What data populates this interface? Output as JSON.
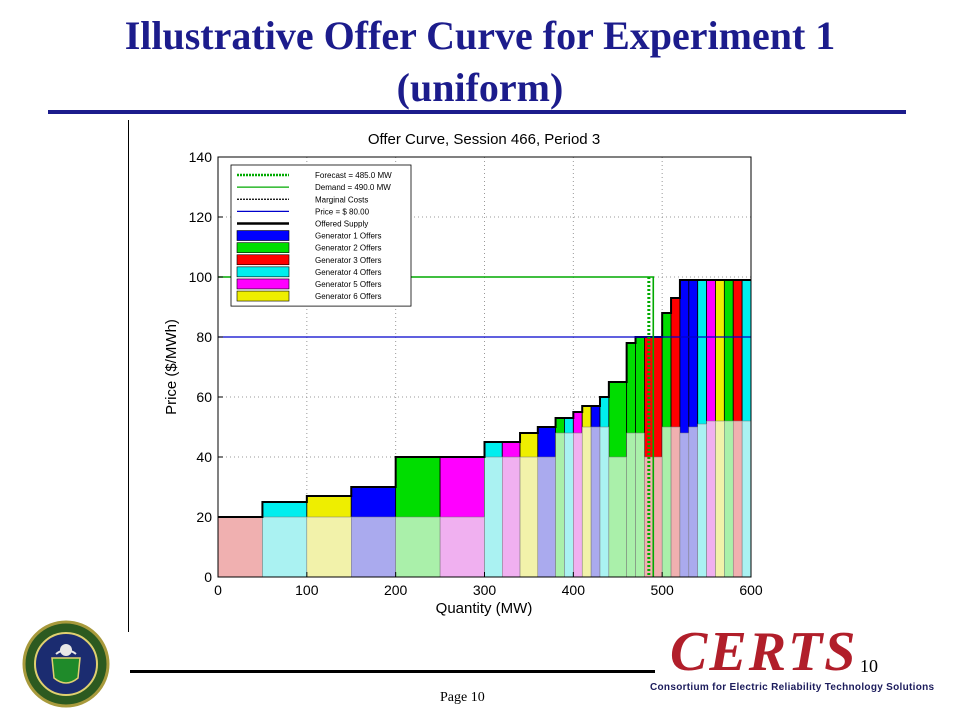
{
  "slide": {
    "title_line1": "Illustrative Offer Curve for Experiment 1",
    "title_line2": "(uniform)",
    "page_label": "Page 10",
    "slide_number": "10",
    "certs_word": "CERTS",
    "certs_tagline": "Consortium for Electric Reliability Technology Solutions",
    "title_color": "#1c1c8c"
  },
  "chart_data": {
    "type": "bar",
    "title": "Offer Curve, Session 466, Period 3",
    "xlabel": "Quantity (MW)",
    "ylabel": "Price ($/MWh)",
    "xlim": [
      0,
      600
    ],
    "ylim": [
      0,
      140
    ],
    "xticks": [
      0,
      100,
      200,
      300,
      400,
      500,
      600
    ],
    "yticks": [
      0,
      20,
      40,
      60,
      80,
      100,
      120,
      140
    ],
    "grid": true,
    "legend_position": "top-left",
    "legend": [
      {
        "label": "Forecast = 485.0 MW",
        "style": "dotted",
        "color": "#00aa00"
      },
      {
        "label": "Demand = 490.0 MW",
        "style": "solid",
        "color": "#00aa00"
      },
      {
        "label": "Marginal Costs",
        "style": "dotted",
        "color": "#000000"
      },
      {
        "label": "Price = $ 80.00",
        "style": "solid",
        "color": "#0000cc"
      },
      {
        "label": "Offered Supply",
        "style": "thick",
        "color": "#000000"
      },
      {
        "label": "Generator 1 Offers",
        "style": "patch",
        "color": "#0000ff"
      },
      {
        "label": "Generator 2 Offers",
        "style": "patch",
        "color": "#00dd00"
      },
      {
        "label": "Generator 3 Offers",
        "style": "patch",
        "color": "#ff0000"
      },
      {
        "label": "Generator 4 Offers",
        "style": "patch",
        "color": "#00eeee"
      },
      {
        "label": "Generator 5 Offers",
        "style": "patch",
        "color": "#ff00ff"
      },
      {
        "label": "Generator 6 Offers",
        "style": "patch",
        "color": "#eeee00"
      }
    ],
    "price": 80,
    "demand": {
      "quantity": 490,
      "price": 100
    },
    "forecast": 485,
    "offers": [
      {
        "x0": 0,
        "x1": 50,
        "price": 20,
        "gen": 3
      },
      {
        "x0": 50,
        "x1": 100,
        "price": 25,
        "gen": 4
      },
      {
        "x0": 100,
        "x1": 150,
        "price": 27,
        "gen": 6
      },
      {
        "x0": 150,
        "x1": 200,
        "price": 30,
        "gen": 1
      },
      {
        "x0": 200,
        "x1": 250,
        "price": 40,
        "gen": 2
      },
      {
        "x0": 250,
        "x1": 300,
        "price": 40,
        "gen": 5
      },
      {
        "x0": 300,
        "x1": 320,
        "price": 45,
        "gen": 4
      },
      {
        "x0": 320,
        "x1": 340,
        "price": 45,
        "gen": 5
      },
      {
        "x0": 340,
        "x1": 360,
        "price": 48,
        "gen": 6
      },
      {
        "x0": 360,
        "x1": 380,
        "price": 50,
        "gen": 1
      },
      {
        "x0": 380,
        "x1": 390,
        "price": 53,
        "gen": 2
      },
      {
        "x0": 390,
        "x1": 400,
        "price": 53,
        "gen": 4
      },
      {
        "x0": 400,
        "x1": 410,
        "price": 55,
        "gen": 5
      },
      {
        "x0": 410,
        "x1": 420,
        "price": 57,
        "gen": 6
      },
      {
        "x0": 420,
        "x1": 430,
        "price": 57,
        "gen": 1
      },
      {
        "x0": 430,
        "x1": 440,
        "price": 60,
        "gen": 4
      },
      {
        "x0": 440,
        "x1": 460,
        "price": 65,
        "gen": 2
      },
      {
        "x0": 460,
        "x1": 470,
        "price": 78,
        "gen": 2
      },
      {
        "x0": 470,
        "x1": 480,
        "price": 80,
        "gen": 2
      },
      {
        "x0": 480,
        "x1": 490,
        "price": 80,
        "gen": 3
      },
      {
        "x0": 490,
        "x1": 500,
        "price": 80,
        "gen": 3
      },
      {
        "x0": 500,
        "x1": 510,
        "price": 88,
        "gen": 2
      },
      {
        "x0": 510,
        "x1": 520,
        "price": 93,
        "gen": 3
      },
      {
        "x0": 520,
        "x1": 530,
        "price": 99,
        "gen": 1
      },
      {
        "x0": 530,
        "x1": 540,
        "price": 99,
        "gen": 1
      },
      {
        "x0": 540,
        "x1": 550,
        "price": 99,
        "gen": 4
      },
      {
        "x0": 550,
        "x1": 560,
        "price": 99,
        "gen": 5
      },
      {
        "x0": 560,
        "x1": 570,
        "price": 99,
        "gen": 6
      },
      {
        "x0": 570,
        "x1": 580,
        "price": 99,
        "gen": 2
      },
      {
        "x0": 580,
        "x1": 590,
        "price": 99,
        "gen": 3
      },
      {
        "x0": 590,
        "x1": 600,
        "price": 99,
        "gen": 4
      }
    ],
    "marginal_costs": [
      {
        "x0": 0,
        "x1": 50,
        "price": 20,
        "gen": 3
      },
      {
        "x0": 50,
        "x1": 100,
        "price": 20,
        "gen": 4
      },
      {
        "x0": 100,
        "x1": 150,
        "price": 20,
        "gen": 6
      },
      {
        "x0": 150,
        "x1": 200,
        "price": 20,
        "gen": 1
      },
      {
        "x0": 200,
        "x1": 250,
        "price": 20,
        "gen": 2
      },
      {
        "x0": 250,
        "x1": 300,
        "price": 20,
        "gen": 5
      },
      {
        "x0": 300,
        "x1": 320,
        "price": 40,
        "gen": 4
      },
      {
        "x0": 320,
        "x1": 340,
        "price": 40,
        "gen": 5
      },
      {
        "x0": 340,
        "x1": 360,
        "price": 40,
        "gen": 6
      },
      {
        "x0": 360,
        "x1": 380,
        "price": 40,
        "gen": 1
      },
      {
        "x0": 380,
        "x1": 390,
        "price": 48,
        "gen": 2
      },
      {
        "x0": 390,
        "x1": 400,
        "price": 48,
        "gen": 4
      },
      {
        "x0": 400,
        "x1": 410,
        "price": 48,
        "gen": 5
      },
      {
        "x0": 410,
        "x1": 420,
        "price": 50,
        "gen": 6
      },
      {
        "x0": 420,
        "x1": 430,
        "price": 50,
        "gen": 1
      },
      {
        "x0": 430,
        "x1": 440,
        "price": 50,
        "gen": 4
      },
      {
        "x0": 440,
        "x1": 460,
        "price": 40,
        "gen": 2
      },
      {
        "x0": 460,
        "x1": 470,
        "price": 48,
        "gen": 2
      },
      {
        "x0": 470,
        "x1": 480,
        "price": 48,
        "gen": 2
      },
      {
        "x0": 480,
        "x1": 490,
        "price": 40,
        "gen": 3
      },
      {
        "x0": 490,
        "x1": 500,
        "price": 40,
        "gen": 3
      },
      {
        "x0": 500,
        "x1": 510,
        "price": 50,
        "gen": 2
      },
      {
        "x0": 510,
        "x1": 520,
        "price": 50,
        "gen": 3
      },
      {
        "x0": 520,
        "x1": 530,
        "price": 48,
        "gen": 1
      },
      {
        "x0": 530,
        "x1": 540,
        "price": 50,
        "gen": 1
      },
      {
        "x0": 540,
        "x1": 550,
        "price": 51,
        "gen": 4
      },
      {
        "x0": 550,
        "x1": 560,
        "price": 52,
        "gen": 5
      },
      {
        "x0": 560,
        "x1": 570,
        "price": 52,
        "gen": 6
      },
      {
        "x0": 570,
        "x1": 580,
        "price": 52,
        "gen": 2
      },
      {
        "x0": 580,
        "x1": 590,
        "price": 52,
        "gen": 3
      },
      {
        "x0": 590,
        "x1": 600,
        "price": 52,
        "gen": 4
      }
    ],
    "gen_colors": {
      "1": {
        "fill": "#0000ff",
        "light": "#aaaaee"
      },
      "2": {
        "fill": "#00dd00",
        "light": "#aaf0aa"
      },
      "3": {
        "fill": "#ff0000",
        "light": "#f0b0b0"
      },
      "4": {
        "fill": "#00eeee",
        "light": "#aaf2f2"
      },
      "5": {
        "fill": "#ff00ff",
        "light": "#f0b0f0"
      },
      "6": {
        "fill": "#eeee00",
        "light": "#f2f2aa"
      }
    }
  }
}
